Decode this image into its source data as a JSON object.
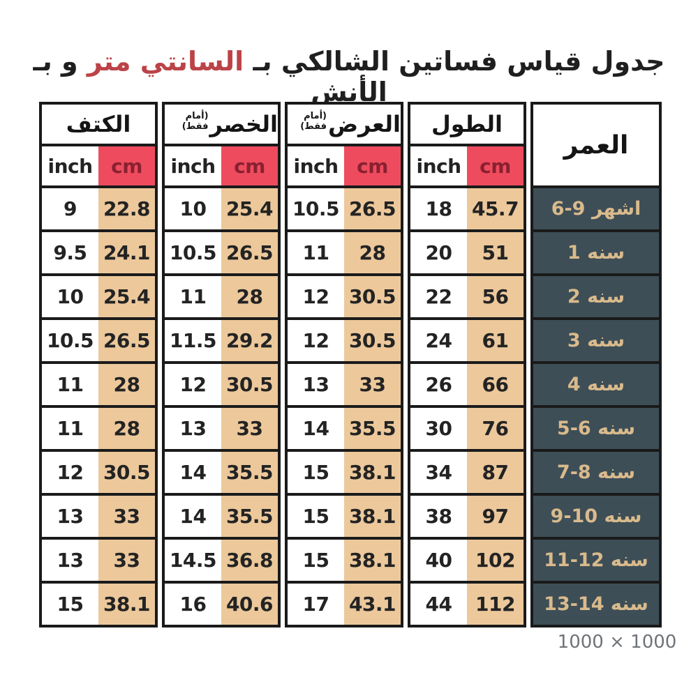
{
  "title": {
    "part1": "جدول قياس فساتين الشالكي بـ ",
    "highlight": "السانتي متر",
    "part2": " و بـ الأنش"
  },
  "table": {
    "age_header": "العمر",
    "units": {
      "inch": "inch",
      "cm": "cm"
    },
    "groups": [
      {
        "name": "shoulder",
        "title": "الكتف",
        "subtitle": "",
        "rows": [
          [
            "9",
            "22.8"
          ],
          [
            "9.5",
            "24.1"
          ],
          [
            "10",
            "25.4"
          ],
          [
            "10.5",
            "26.5"
          ],
          [
            "11",
            "28"
          ],
          [
            "11",
            "28"
          ],
          [
            "12",
            "30.5"
          ],
          [
            "13",
            "33"
          ],
          [
            "13",
            "33"
          ],
          [
            "15",
            "38.1"
          ]
        ]
      },
      {
        "name": "waist",
        "title": "الخصر",
        "subtitle": "(أمام فقط)",
        "rows": [
          [
            "10",
            "25.4"
          ],
          [
            "10.5",
            "26.5"
          ],
          [
            "11",
            "28"
          ],
          [
            "11.5",
            "29.2"
          ],
          [
            "12",
            "30.5"
          ],
          [
            "13",
            "33"
          ],
          [
            "14",
            "35.5"
          ],
          [
            "14",
            "35.5"
          ],
          [
            "14.5",
            "36.8"
          ],
          [
            "16",
            "40.6"
          ]
        ]
      },
      {
        "name": "width",
        "title": "العرض",
        "subtitle": "(أمام فقط)",
        "rows": [
          [
            "10.5",
            "26.5"
          ],
          [
            "11",
            "28"
          ],
          [
            "12",
            "30.5"
          ],
          [
            "12",
            "30.5"
          ],
          [
            "13",
            "33"
          ],
          [
            "14",
            "35.5"
          ],
          [
            "15",
            "38.1"
          ],
          [
            "15",
            "38.1"
          ],
          [
            "15",
            "38.1"
          ],
          [
            "17",
            "43.1"
          ]
        ]
      },
      {
        "name": "length",
        "title": "الطول",
        "subtitle": "",
        "rows": [
          [
            "18",
            "45.7"
          ],
          [
            "20",
            "51"
          ],
          [
            "22",
            "56"
          ],
          [
            "24",
            "61"
          ],
          [
            "26",
            "66"
          ],
          [
            "30",
            "76"
          ],
          [
            "34",
            "87"
          ],
          [
            "38",
            "97"
          ],
          [
            "40",
            "102"
          ],
          [
            "44",
            "112"
          ]
        ]
      }
    ],
    "ages": [
      "6-9 اشهر",
      "سنه 1",
      "سنه 2",
      "سنه 3",
      "سنه 4",
      "سنه 6-5",
      "سنه 8-7",
      "سنه 10-9",
      "سنه 12-11",
      "سنه 14-13"
    ]
  },
  "footer": {
    "dimensions": "1000 × 1000"
  },
  "colors": {
    "border": "#1a1a1a",
    "red": "#ee4c5e",
    "cm_text": "#8a2030",
    "tan": "#ecc89b",
    "slate": "#3d4e57",
    "gold": "#d9ba8c",
    "title_red": "#bb4348",
    "number": "#232323",
    "pill_text": "#6f7479"
  },
  "chart_data": {
    "type": "table",
    "title": "جدول قياس فساتين الشالكي بـ السانتي متر و بـ الأنش",
    "columns": [
      "العمر",
      "الطول inch",
      "الطول cm",
      "العرض (أمام فقط) inch",
      "العرض (أمام فقط) cm",
      "الخصر (أمام فقط) inch",
      "الخصر (أمام فقط) cm",
      "الكتف inch",
      "الكتف cm"
    ],
    "rows": [
      [
        "6-9 أشهر",
        18,
        45.7,
        10.5,
        26.5,
        10,
        25.4,
        9,
        22.8
      ],
      [
        "1 سنه",
        20,
        51,
        11,
        28,
        10.5,
        26.5,
        9.5,
        24.1
      ],
      [
        "2 سنه",
        22,
        56,
        12,
        30.5,
        11,
        28,
        10,
        25.4
      ],
      [
        "3 سنه",
        24,
        61,
        12,
        30.5,
        11.5,
        29.2,
        10.5,
        26.5
      ],
      [
        "4 سنه",
        26,
        66,
        13,
        33,
        12,
        30.5,
        11,
        28
      ],
      [
        "5-6 سنه",
        30,
        76,
        14,
        35.5,
        13,
        33,
        11,
        28
      ],
      [
        "7-8 سنه",
        34,
        87,
        15,
        38.1,
        14,
        35.5,
        12,
        30.5
      ],
      [
        "9-10 سنه",
        38,
        97,
        15,
        38.1,
        14,
        35.5,
        13,
        33
      ],
      [
        "11-12 سنه",
        40,
        102,
        15,
        38.1,
        14.5,
        36.8,
        13,
        33
      ],
      [
        "13-14 سنه",
        44,
        112,
        17,
        43.1,
        16,
        40.6,
        15,
        38.1
      ]
    ]
  }
}
